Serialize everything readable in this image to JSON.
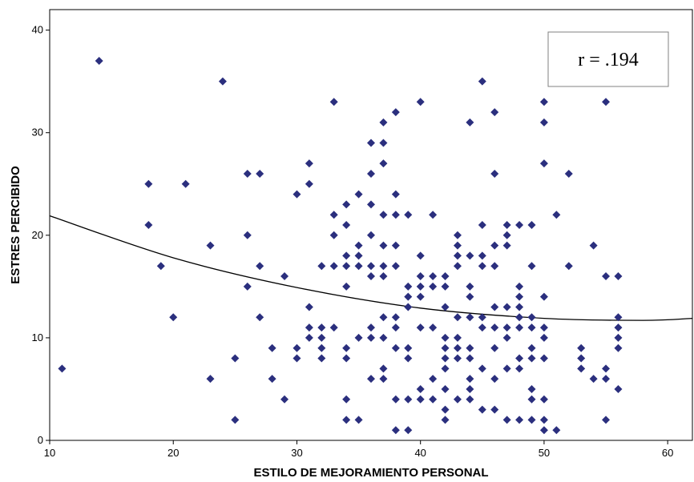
{
  "chart_data": {
    "type": "scatter",
    "xlabel": "ESTILO DE MEJORAMIENTO PERSONAL",
    "ylabel": "ESTRES PERCIBIDO",
    "xlim": [
      10,
      62
    ],
    "ylim": [
      0,
      42
    ],
    "xticks": [
      "10",
      "20",
      "30",
      "40",
      "50",
      "60"
    ],
    "yticks": [
      "0",
      "10",
      "20",
      "30",
      "40"
    ],
    "annotation": "r = .194",
    "grid": false,
    "marker_color": "#2b2f7e",
    "line_color": "#000000",
    "fit_line": {
      "x": [
        10,
        20,
        30,
        40,
        50,
        58,
        62
      ],
      "y": [
        21.9,
        17.8,
        14.9,
        12.9,
        11.9,
        11.7,
        11.9
      ]
    },
    "points": [
      [
        11,
        7
      ],
      [
        14,
        37
      ],
      [
        18,
        25
      ],
      [
        18,
        21
      ],
      [
        19,
        17
      ],
      [
        20,
        12
      ],
      [
        21,
        25
      ],
      [
        23,
        19
      ],
      [
        23,
        6
      ],
      [
        24,
        35
      ],
      [
        25,
        8
      ],
      [
        25,
        2
      ],
      [
        26,
        26
      ],
      [
        26,
        20
      ],
      [
        26,
        15
      ],
      [
        27,
        26
      ],
      [
        27,
        17
      ],
      [
        27,
        12
      ],
      [
        28,
        9
      ],
      [
        28,
        6
      ],
      [
        29,
        16
      ],
      [
        29,
        4
      ],
      [
        30,
        24
      ],
      [
        30,
        9
      ],
      [
        30,
        8
      ],
      [
        31,
        27
      ],
      [
        31,
        25
      ],
      [
        31,
        13
      ],
      [
        31,
        11
      ],
      [
        31,
        10
      ],
      [
        32,
        17
      ],
      [
        32,
        11
      ],
      [
        32,
        10
      ],
      [
        32,
        9
      ],
      [
        32,
        8
      ],
      [
        33,
        33
      ],
      [
        33,
        22
      ],
      [
        33,
        20
      ],
      [
        33,
        17
      ],
      [
        33,
        11
      ],
      [
        34,
        23
      ],
      [
        34,
        21
      ],
      [
        34,
        18
      ],
      [
        34,
        17
      ],
      [
        34,
        15
      ],
      [
        34,
        9
      ],
      [
        34,
        8
      ],
      [
        34,
        4
      ],
      [
        34,
        2
      ],
      [
        35,
        24
      ],
      [
        35,
        19
      ],
      [
        35,
        18
      ],
      [
        35,
        17
      ],
      [
        35,
        10
      ],
      [
        35,
        2
      ],
      [
        36,
        29
      ],
      [
        36,
        26
      ],
      [
        36,
        23
      ],
      [
        36,
        20
      ],
      [
        36,
        17
      ],
      [
        36,
        16
      ],
      [
        36,
        11
      ],
      [
        36,
        10
      ],
      [
        36,
        6
      ],
      [
        37,
        31
      ],
      [
        37,
        29
      ],
      [
        37,
        27
      ],
      [
        37,
        22
      ],
      [
        37,
        19
      ],
      [
        37,
        17
      ],
      [
        37,
        16
      ],
      [
        37,
        12
      ],
      [
        37,
        10
      ],
      [
        37,
        7
      ],
      [
        37,
        6
      ],
      [
        38,
        32
      ],
      [
        38,
        24
      ],
      [
        38,
        22
      ],
      [
        38,
        19
      ],
      [
        38,
        17
      ],
      [
        38,
        12
      ],
      [
        38,
        11
      ],
      [
        38,
        9
      ],
      [
        38,
        4
      ],
      [
        38,
        1
      ],
      [
        39,
        22
      ],
      [
        39,
        15
      ],
      [
        39,
        14
      ],
      [
        39,
        13
      ],
      [
        39,
        9
      ],
      [
        39,
        8
      ],
      [
        39,
        4
      ],
      [
        39,
        1
      ],
      [
        40,
        33
      ],
      [
        40,
        18
      ],
      [
        40,
        16
      ],
      [
        40,
        15
      ],
      [
        40,
        14
      ],
      [
        40,
        11
      ],
      [
        40,
        5
      ],
      [
        40,
        4
      ],
      [
        41,
        22
      ],
      [
        41,
        16
      ],
      [
        41,
        15
      ],
      [
        41,
        11
      ],
      [
        41,
        6
      ],
      [
        41,
        4
      ],
      [
        42,
        16
      ],
      [
        42,
        15
      ],
      [
        42,
        13
      ],
      [
        42,
        10
      ],
      [
        42,
        9
      ],
      [
        42,
        8
      ],
      [
        42,
        7
      ],
      [
        42,
        5
      ],
      [
        42,
        3
      ],
      [
        42,
        2
      ],
      [
        43,
        20
      ],
      [
        43,
        19
      ],
      [
        43,
        18
      ],
      [
        43,
        17
      ],
      [
        43,
        12
      ],
      [
        43,
        10
      ],
      [
        43,
        9
      ],
      [
        43,
        8
      ],
      [
        43,
        4
      ],
      [
        44,
        31
      ],
      [
        44,
        18
      ],
      [
        44,
        15
      ],
      [
        44,
        14
      ],
      [
        44,
        12
      ],
      [
        44,
        9
      ],
      [
        44,
        8
      ],
      [
        44,
        6
      ],
      [
        44,
        5
      ],
      [
        44,
        4
      ],
      [
        45,
        35
      ],
      [
        45,
        21
      ],
      [
        45,
        18
      ],
      [
        45,
        17
      ],
      [
        45,
        12
      ],
      [
        45,
        11
      ],
      [
        45,
        7
      ],
      [
        45,
        3
      ],
      [
        46,
        32
      ],
      [
        46,
        26
      ],
      [
        46,
        19
      ],
      [
        46,
        17
      ],
      [
        46,
        13
      ],
      [
        46,
        11
      ],
      [
        46,
        9
      ],
      [
        46,
        6
      ],
      [
        46,
        3
      ],
      [
        47,
        21
      ],
      [
        47,
        20
      ],
      [
        47,
        19
      ],
      [
        47,
        13
      ],
      [
        47,
        11
      ],
      [
        47,
        10
      ],
      [
        47,
        7
      ],
      [
        47,
        2
      ],
      [
        48,
        21
      ],
      [
        48,
        15
      ],
      [
        48,
        14
      ],
      [
        48,
        13
      ],
      [
        48,
        12
      ],
      [
        48,
        11
      ],
      [
        48,
        8
      ],
      [
        48,
        7
      ],
      [
        48,
        2
      ],
      [
        49,
        21
      ],
      [
        49,
        17
      ],
      [
        49,
        12
      ],
      [
        49,
        11
      ],
      [
        49,
        9
      ],
      [
        49,
        8
      ],
      [
        49,
        5
      ],
      [
        49,
        4
      ],
      [
        49,
        2
      ],
      [
        50,
        33
      ],
      [
        50,
        31
      ],
      [
        50,
        27
      ],
      [
        50,
        14
      ],
      [
        50,
        11
      ],
      [
        50,
        10
      ],
      [
        50,
        8
      ],
      [
        50,
        4
      ],
      [
        50,
        2
      ],
      [
        50,
        1
      ],
      [
        51,
        22
      ],
      [
        51,
        1
      ],
      [
        52,
        26
      ],
      [
        52,
        17
      ],
      [
        53,
        9
      ],
      [
        53,
        8
      ],
      [
        53,
        7
      ],
      [
        54,
        19
      ],
      [
        54,
        6
      ],
      [
        55,
        33
      ],
      [
        55,
        16
      ],
      [
        55,
        7
      ],
      [
        55,
        6
      ],
      [
        55,
        2
      ],
      [
        56,
        16
      ],
      [
        56,
        12
      ],
      [
        56,
        11
      ],
      [
        56,
        10
      ],
      [
        56,
        9
      ],
      [
        56,
        5
      ]
    ]
  }
}
